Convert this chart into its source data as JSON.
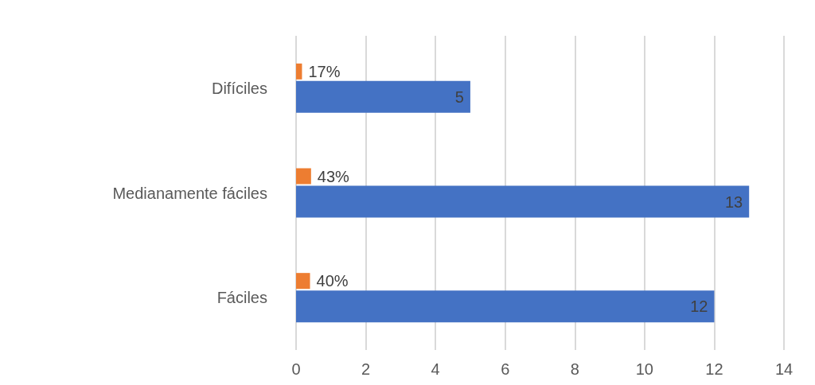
{
  "chart_data": {
    "type": "bar",
    "orientation": "horizontal",
    "categories": [
      "Difíciles",
      "Medianamente fáciles",
      "Fáciles"
    ],
    "series": [
      {
        "color": "#ed7d31",
        "values": [
          0.17,
          0.43,
          0.4
        ],
        "value_labels": [
          "17%",
          "43%",
          "40%"
        ]
      },
      {
        "color": "#4472c4",
        "values": [
          5,
          13,
          12
        ],
        "value_labels": [
          "5",
          "13",
          "12"
        ]
      }
    ],
    "xlim": [
      0,
      14
    ],
    "xticks": [
      0,
      2,
      4,
      6,
      8,
      10,
      12,
      14
    ],
    "grid": "x"
  }
}
